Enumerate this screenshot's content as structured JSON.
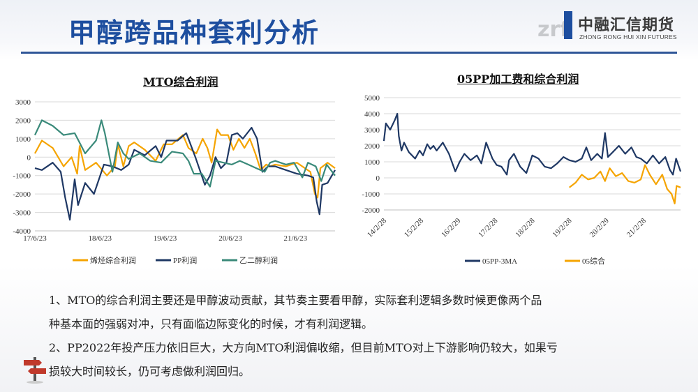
{
  "page": {
    "title": "甲醇跨品种套利分析",
    "logo_cn": "中融汇信期货",
    "logo_en": "ZHONG RONG HUI XIN FUTURES",
    "logo_mark": "zrf",
    "colors": {
      "title": "#1d4e9f",
      "orange": "#f5a400",
      "navy": "#1f3864",
      "teal": "#3a8a7a"
    }
  },
  "notes": [
    "1、MTO的综合利润主要还是甲醇波动贡献，其节奏主要看甲醇，实际套利逻辑多数时候更像两个品",
    "种基本面的强弱对冲，只有面临边际变化的时候，才有利润逻辑。",
    "2、PP2022年投产压力依旧巨大，大方向MTO利润偏收缩，但目前MTO对上下游影响仍较大，如果亏",
    "损较大时间较长，仍可考虑做利润回归。"
  ],
  "chart_data": [
    {
      "type": "line",
      "title": "MTO综合利润",
      "ylim": [
        -4000,
        3000
      ],
      "yticks": [
        3000,
        2000,
        1000,
        0,
        -1000,
        -2000,
        -3000,
        -4000
      ],
      "xlim": [
        "2017-06-23",
        "2022-01-31"
      ],
      "xticks": [
        "17/6/23",
        "18/6/23",
        "19/6/23",
        "20/6/23",
        "21/6/23"
      ],
      "legend": "bottom",
      "grid": true,
      "series": [
        {
          "name": "烯烃综合利润",
          "color": "#f5a400",
          "points": [
            [
              "2017-06-23",
              200
            ],
            [
              "2017-08-01",
              900
            ],
            [
              "2017-10-01",
              500
            ],
            [
              "2017-12-01",
              -500
            ],
            [
              "2018-01-15",
              0
            ],
            [
              "2018-02-15",
              -900
            ],
            [
              "2018-03-01",
              600
            ],
            [
              "2018-04-01",
              -700
            ],
            [
              "2018-06-01",
              -300
            ],
            [
              "2018-08-01",
              -1000
            ],
            [
              "2018-09-15",
              -500
            ],
            [
              "2018-10-01",
              700
            ],
            [
              "2018-11-01",
              -500
            ],
            [
              "2018-12-01",
              600
            ],
            [
              "2019-01-01",
              800
            ],
            [
              "2019-03-01",
              400
            ],
            [
              "2019-05-01",
              -200
            ],
            [
              "2019-06-15",
              700
            ],
            [
              "2019-08-01",
              700
            ],
            [
              "2019-10-01",
              1200
            ],
            [
              "2019-11-01",
              500
            ],
            [
              "2019-12-15",
              200
            ],
            [
              "2020-01-20",
              1000
            ],
            [
              "2020-02-15",
              500
            ],
            [
              "2020-03-10",
              -300
            ],
            [
              "2020-04-10",
              1500
            ],
            [
              "2020-05-01",
              1200
            ],
            [
              "2020-06-10",
              1200
            ],
            [
              "2020-07-10",
              400
            ],
            [
              "2020-08-10",
              1000
            ],
            [
              "2020-09-10",
              500
            ],
            [
              "2020-10-10",
              1000
            ],
            [
              "2020-11-10",
              200
            ],
            [
              "2020-12-10",
              -700
            ],
            [
              "2021-01-10",
              -400
            ],
            [
              "2021-02-01",
              -500
            ],
            [
              "2021-03-01",
              -400
            ],
            [
              "2021-05-01",
              -500
            ],
            [
              "2021-07-01",
              -300
            ],
            [
              "2021-08-15",
              -600
            ],
            [
              "2021-09-15",
              -800
            ],
            [
              "2021-10-10",
              -2000
            ],
            [
              "2021-10-25",
              -2200
            ],
            [
              "2021-11-10",
              -600
            ],
            [
              "2021-12-20",
              -300
            ],
            [
              "2022-01-31",
              -600
            ]
          ]
        },
        {
          "name": "PP利润",
          "color": "#1f3864",
          "points": [
            [
              "2017-06-23",
              -600
            ],
            [
              "2017-08-01",
              -700
            ],
            [
              "2017-10-01",
              -300
            ],
            [
              "2017-11-15",
              -800
            ],
            [
              "2017-12-10",
              -2200
            ],
            [
              "2018-01-05",
              -3400
            ],
            [
              "2018-02-01",
              -1200
            ],
            [
              "2018-02-20",
              -2600
            ],
            [
              "2018-04-01",
              -1400
            ],
            [
              "2018-05-20",
              -2000
            ],
            [
              "2018-07-15",
              -400
            ],
            [
              "2018-09-01",
              -500
            ],
            [
              "2018-10-20",
              -700
            ],
            [
              "2018-12-01",
              -400
            ],
            [
              "2019-01-01",
              400
            ],
            [
              "2019-03-01",
              100
            ],
            [
              "2019-05-01",
              600
            ],
            [
              "2019-06-01",
              0
            ],
            [
              "2019-07-01",
              900
            ],
            [
              "2019-09-01",
              900
            ],
            [
              "2019-10-20",
              1300
            ],
            [
              "2019-12-10",
              0
            ],
            [
              "2020-02-01",
              -1500
            ],
            [
              "2020-03-01",
              -1000
            ],
            [
              "2020-04-01",
              0
            ],
            [
              "2020-05-01",
              -600
            ],
            [
              "2020-06-01",
              -300
            ],
            [
              "2020-07-01",
              1200
            ],
            [
              "2020-08-01",
              1300
            ],
            [
              "2020-09-01",
              1000
            ],
            [
              "2020-10-20",
              1600
            ],
            [
              "2020-11-20",
              1000
            ],
            [
              "2020-12-20",
              -800
            ],
            [
              "2021-01-20",
              -500
            ],
            [
              "2021-03-01",
              -500
            ],
            [
              "2021-05-01",
              -700
            ],
            [
              "2021-07-01",
              -900
            ],
            [
              "2021-09-01",
              -1000
            ],
            [
              "2021-10-01",
              -1100
            ],
            [
              "2021-10-20",
              -2400
            ],
            [
              "2021-11-05",
              -3100
            ],
            [
              "2021-11-20",
              -1500
            ],
            [
              "2021-12-20",
              -1400
            ],
            [
              "2022-01-31",
              -700
            ]
          ]
        },
        {
          "name": "乙二醇利润",
          "color": "#3a8a7a",
          "points": [
            [
              "2017-06-23",
              1200
            ],
            [
              "2017-08-01",
              2000
            ],
            [
              "2017-10-01",
              1700
            ],
            [
              "2017-12-01",
              1200
            ],
            [
              "2018-02-01",
              1300
            ],
            [
              "2018-04-01",
              200
            ],
            [
              "2018-06-01",
              900
            ],
            [
              "2018-07-01",
              2000
            ],
            [
              "2018-07-20",
              1300
            ],
            [
              "2018-09-01",
              -800
            ],
            [
              "2018-10-01",
              800
            ],
            [
              "2018-11-01",
              200
            ],
            [
              "2018-12-01",
              -100
            ],
            [
              "2019-02-01",
              200
            ],
            [
              "2019-04-01",
              -200
            ],
            [
              "2019-06-01",
              -300
            ],
            [
              "2019-08-01",
              300
            ],
            [
              "2019-10-01",
              200
            ],
            [
              "2019-11-01",
              -200
            ],
            [
              "2019-12-01",
              -900
            ],
            [
              "2020-01-15",
              -900
            ],
            [
              "2020-03-01",
              -1600
            ],
            [
              "2020-04-01",
              -200
            ],
            [
              "2020-05-15",
              -300
            ],
            [
              "2020-07-01",
              -400
            ],
            [
              "2020-08-15",
              -200
            ],
            [
              "2020-10-01",
              -400
            ],
            [
              "2020-11-15",
              -600
            ],
            [
              "2021-01-01",
              -800
            ],
            [
              "2021-02-01",
              -300
            ],
            [
              "2021-03-01",
              -200
            ],
            [
              "2021-05-01",
              -400
            ],
            [
              "2021-06-15",
              -300
            ],
            [
              "2021-08-01",
              -1100
            ],
            [
              "2021-09-01",
              -300
            ],
            [
              "2021-10-15",
              -500
            ],
            [
              "2021-11-15",
              -1300
            ],
            [
              "2021-12-15",
              -400
            ],
            [
              "2022-01-31",
              -1000
            ]
          ]
        }
      ]
    },
    {
      "type": "line",
      "title": "05PP加工费和综合利润",
      "ylim": [
        -2000,
        5000
      ],
      "yticks": [
        5000,
        4000,
        3000,
        2000,
        1000,
        0,
        -1000,
        -2000
      ],
      "xlim": [
        "2014-02-28",
        "2022-02-28"
      ],
      "xticks": [
        "14/2/28",
        "15/2/28",
        "16/2/29",
        "17/2/28",
        "18/2/28",
        "19/2/28",
        "20/2/29",
        "21/2/28"
      ],
      "legend": "bottom",
      "grid": true,
      "series": [
        {
          "name": "05PP-3MA",
          "color": "#1f3864",
          "points": [
            [
              "2014-02-28",
              2300
            ],
            [
              "2014-03-20",
              3400
            ],
            [
              "2014-05-01",
              3000
            ],
            [
              "2014-06-15",
              3600
            ],
            [
              "2014-07-10",
              4000
            ],
            [
              "2014-07-25",
              2600
            ],
            [
              "2014-08-20",
              1700
            ],
            [
              "2014-09-15",
              2200
            ],
            [
              "2014-11-01",
              1600
            ],
            [
              "2015-01-01",
              1200
            ],
            [
              "2015-02-15",
              1700
            ],
            [
              "2015-03-20",
              1400
            ],
            [
              "2015-05-01",
              2100
            ],
            [
              "2015-06-01",
              1800
            ],
            [
              "2015-07-01",
              2000
            ],
            [
              "2015-08-01",
              1700
            ],
            [
              "2015-10-01",
              2200
            ],
            [
              "2015-12-01",
              1500
            ],
            [
              "2016-02-01",
              400
            ],
            [
              "2016-03-15",
              1000
            ],
            [
              "2016-05-01",
              1500
            ],
            [
              "2016-07-01",
              1100
            ],
            [
              "2016-09-01",
              1400
            ],
            [
              "2016-10-15",
              900
            ],
            [
              "2016-12-01",
              2200
            ],
            [
              "2017-02-01",
              1200
            ],
            [
              "2017-03-15",
              800
            ],
            [
              "2017-05-01",
              700
            ],
            [
              "2017-06-23",
              200
            ],
            [
              "2017-07-15",
              1100
            ],
            [
              "2017-09-01",
              1500
            ],
            [
              "2017-11-01",
              700
            ],
            [
              "2018-01-01",
              300
            ],
            [
              "2018-03-01",
              1400
            ],
            [
              "2018-05-01",
              1200
            ],
            [
              "2018-07-01",
              700
            ],
            [
              "2018-09-01",
              600
            ],
            [
              "2018-11-01",
              900
            ],
            [
              "2019-01-01",
              1300
            ],
            [
              "2019-03-01",
              1100
            ],
            [
              "2019-05-01",
              1000
            ],
            [
              "2019-07-01",
              1200
            ],
            [
              "2019-08-15",
              1900
            ],
            [
              "2019-10-01",
              1100
            ],
            [
              "2019-12-01",
              1500
            ],
            [
              "2020-01-15",
              1200
            ],
            [
              "2020-02-15",
              2800
            ],
            [
              "2020-03-15",
              1300
            ],
            [
              "2020-05-01",
              1600
            ],
            [
              "2020-07-01",
              2000
            ],
            [
              "2020-09-01",
              1500
            ],
            [
              "2020-11-01",
              1900
            ],
            [
              "2020-12-20",
              1300
            ],
            [
              "2021-02-01",
              1200
            ],
            [
              "2021-04-01",
              900
            ],
            [
              "2021-06-01",
              1400
            ],
            [
              "2021-08-01",
              900
            ],
            [
              "2021-10-01",
              1300
            ],
            [
              "2021-11-15",
              500
            ],
            [
              "2021-12-15",
              200
            ],
            [
              "2022-01-15",
              1200
            ],
            [
              "2022-02-28",
              400
            ]
          ]
        },
        {
          "name": "05综合",
          "color": "#f5a400",
          "points": [
            [
              "2019-03-01",
              -600
            ],
            [
              "2019-05-01",
              -300
            ],
            [
              "2019-07-01",
              200
            ],
            [
              "2019-09-01",
              -100
            ],
            [
              "2019-11-01",
              0
            ],
            [
              "2020-01-01",
              400
            ],
            [
              "2020-02-15",
              -200
            ],
            [
              "2020-04-01",
              600
            ],
            [
              "2020-06-01",
              100
            ],
            [
              "2020-08-01",
              300
            ],
            [
              "2020-10-01",
              -200
            ],
            [
              "2020-12-01",
              -300
            ],
            [
              "2021-02-01",
              -100
            ],
            [
              "2021-03-15",
              800
            ],
            [
              "2021-05-01",
              200
            ],
            [
              "2021-07-01",
              -400
            ],
            [
              "2021-09-01",
              200
            ],
            [
              "2021-10-20",
              -700
            ],
            [
              "2021-12-01",
              -1000
            ],
            [
              "2022-01-01",
              -1600
            ],
            [
              "2022-01-20",
              -500
            ],
            [
              "2022-02-28",
              -600
            ]
          ]
        }
      ]
    }
  ]
}
